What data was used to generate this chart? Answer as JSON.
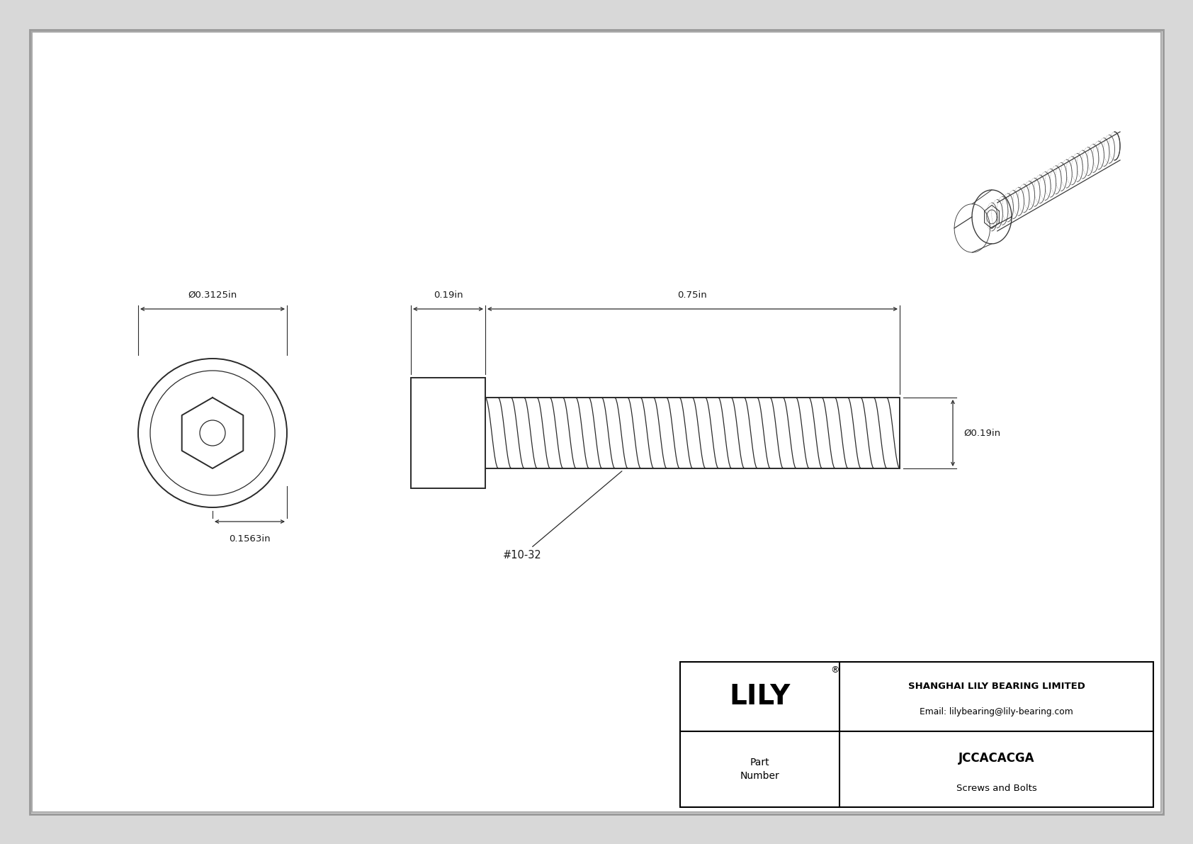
{
  "bg_color": "#d8d8d8",
  "drawing_bg": "#f5f5f5",
  "line_color": "#2a2a2a",
  "dim_color": "#2a2a2a",
  "title": "JCCACACGA",
  "subtitle": "Screws and Bolts",
  "company": "SHANGHAI LILY BEARING LIMITED",
  "email": "Email: lilybearing@lily-bearing.com",
  "logo": "LILY",
  "part_label": "Part\nNumber",
  "dim_head_diameter": "Ø0.3125in",
  "dim_hex_radius": "0.1563in",
  "dim_head_length": "0.19in",
  "dim_shaft_length": "0.75in",
  "dim_shaft_diameter": "Ø0.19in",
  "thread_label": "#10-32",
  "border_color": "#000000",
  "text_color": "#1a1a1a"
}
